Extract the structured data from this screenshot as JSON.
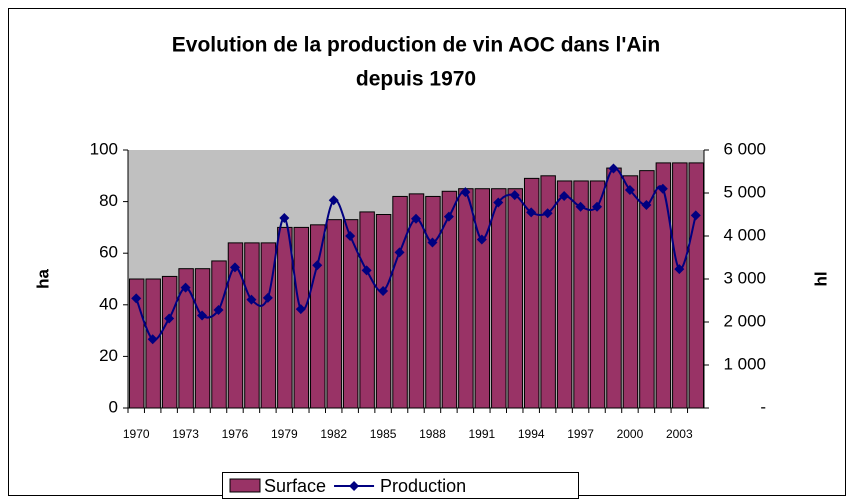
{
  "chart_data": {
    "type": "bar",
    "title": [
      "Evolution de la production de vin AOC dans l'Ain",
      "depuis 1970"
    ],
    "ylabel": "ha",
    "y2label": "hl",
    "categories": [
      "1970",
      null,
      null,
      "1973",
      null,
      null,
      "1976",
      null,
      null,
      "1979",
      null,
      null,
      "1982",
      null,
      null,
      "1985",
      null,
      null,
      "1988",
      null,
      null,
      "1991",
      null,
      null,
      "1994",
      null,
      null,
      "1997",
      null,
      null,
      "2000",
      null,
      null,
      "2003",
      null
    ],
    "series": [
      {
        "name": "Surface",
        "type": "bar",
        "color": "#993366",
        "values": [
          50,
          50,
          51,
          54,
          54,
          57,
          64,
          64,
          64,
          70,
          70,
          71,
          73,
          73,
          76,
          75,
          82,
          83,
          82,
          84,
          85,
          85,
          85,
          85,
          89,
          90,
          88,
          88,
          88,
          93,
          90,
          92,
          95,
          95,
          95
        ]
      },
      {
        "name": "Production",
        "type": "line",
        "axis": "y2",
        "color": "#000080",
        "values": [
          2550,
          1600,
          2080,
          2800,
          2150,
          2280,
          3270,
          2520,
          2560,
          4420,
          2300,
          3320,
          4830,
          4000,
          3200,
          2720,
          3620,
          4400,
          3850,
          4450,
          5020,
          3920,
          4780,
          4950,
          4550,
          4530,
          4930,
          4680,
          4680,
          5570,
          5070,
          4720,
          5100,
          3230,
          4480
        ]
      }
    ],
    "ylim": [
      0,
      100
    ],
    "yticks": [
      0,
      20,
      40,
      60,
      80,
      100
    ],
    "y2lim": [
      0,
      6000
    ],
    "y2ticks": [
      {
        "value": 0,
        "label": "-"
      },
      {
        "value": 1000,
        "label": "1 000"
      },
      {
        "value": 2000,
        "label": "2 000"
      },
      {
        "value": 3000,
        "label": "3 000"
      },
      {
        "value": 4000,
        "label": "4 000"
      },
      {
        "value": 5000,
        "label": "5 000"
      },
      {
        "value": 6000,
        "label": "6 000"
      }
    ],
    "plot_background": "#c0c0c0",
    "legend": "bottom"
  }
}
